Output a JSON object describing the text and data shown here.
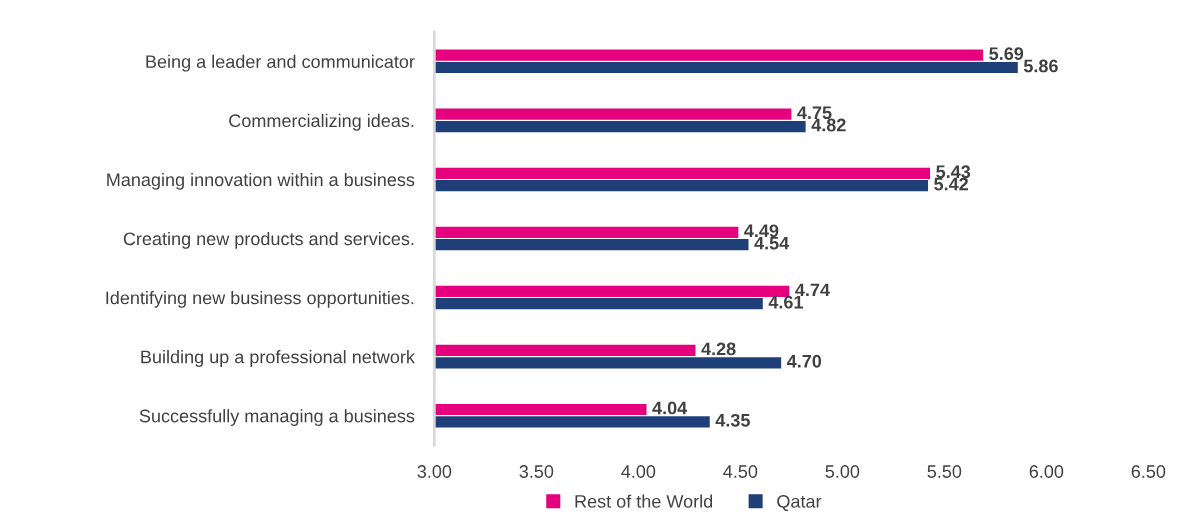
{
  "chart_data": {
    "type": "bar",
    "orientation": "horizontal",
    "categories": [
      "Being a leader and communicator",
      "Commercializing ideas.",
      "Managing innovation within a business",
      "Creating new products and services.",
      "Identifying new business opportunities.",
      "Building up a professional network",
      "Successfully managing a business"
    ],
    "series": [
      {
        "name": "Rest of the World",
        "color": "#e6007e",
        "values": [
          5.69,
          4.75,
          5.43,
          4.49,
          4.74,
          4.28,
          4.04
        ],
        "value_labels": [
          "5.69",
          "4.75",
          "5.43",
          "4.49",
          "4.74",
          "4.28",
          "4.04"
        ]
      },
      {
        "name": "Qatar",
        "color": "#1f3f78",
        "values": [
          5.86,
          4.82,
          5.42,
          4.54,
          4.61,
          4.7,
          4.35
        ],
        "value_labels": [
          "5.86",
          "4.82",
          "5.42",
          "4.54",
          "4.61",
          "4.70",
          "4.35"
        ]
      }
    ],
    "xlim": [
      3,
      6.5
    ],
    "xticks": [
      {
        "value": 3,
        "label": "3.00"
      },
      {
        "value": 3.5,
        "label": "3.50"
      },
      {
        "value": 4,
        "label": "4.00"
      },
      {
        "value": 4.5,
        "label": "4.50"
      },
      {
        "value": 5,
        "label": "5.00"
      },
      {
        "value": 5.5,
        "label": "5.50"
      },
      {
        "value": 6,
        "label": "6.00"
      },
      {
        "value": 6.5,
        "label": "6.50"
      }
    ],
    "grid": false,
    "legend": "bottom"
  }
}
